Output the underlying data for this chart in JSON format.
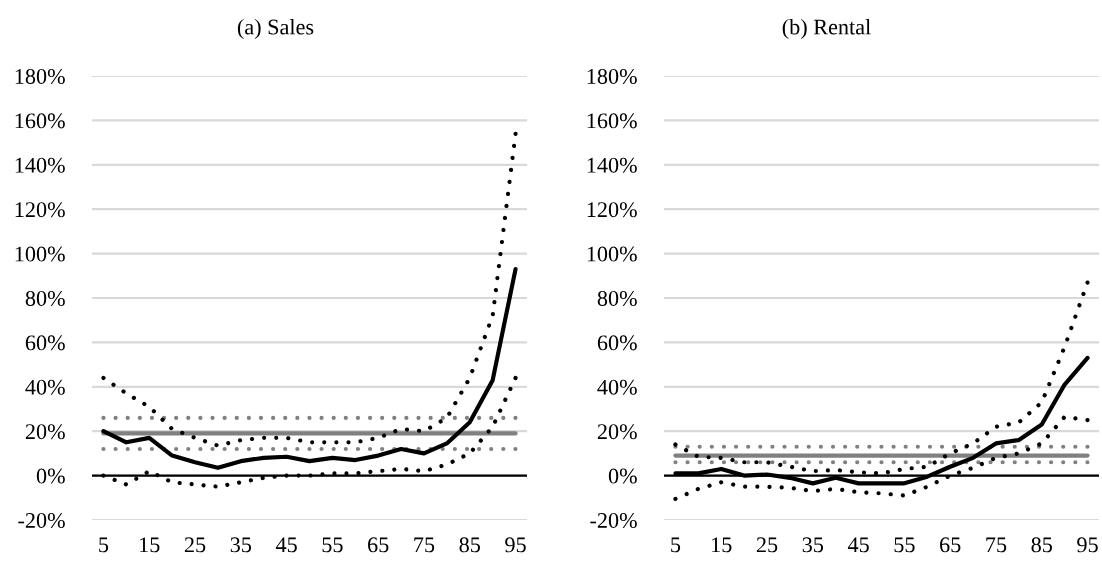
{
  "chart_data": [
    {
      "type": "line",
      "title": "(a) Sales",
      "categories": [
        "5",
        null,
        "15",
        null,
        "25",
        null,
        "35",
        null,
        "45",
        null,
        "55",
        null,
        "65",
        null,
        "75",
        null,
        "85",
        null,
        "95"
      ],
      "series": [
        {
          "color": "#808080",
          "line_style": "dotted",
          "values": [
            26,
            26,
            26,
            26,
            26,
            26,
            26,
            26,
            26,
            26,
            26,
            26,
            26,
            26,
            26,
            26,
            26,
            26,
            26
          ]
        },
        {
          "color": "#808080",
          "line_style": "dotted",
          "values": [
            12,
            12,
            12,
            12,
            12,
            12,
            12,
            12,
            12,
            12,
            12,
            12,
            12,
            12,
            12,
            12,
            12,
            12,
            12
          ]
        },
        {
          "color": "#808080",
          "line_style": "solid",
          "values": [
            19,
            19,
            19,
            19,
            19,
            19,
            19,
            19,
            19,
            19,
            19,
            19,
            19,
            19,
            19,
            19,
            19,
            19,
            19
          ]
        },
        {
          "color": "#000000",
          "line_style": "dotted",
          "values": [
            44,
            37,
            31,
            21,
            17,
            13.5,
            16,
            17,
            17,
            15,
            15,
            15,
            17,
            21,
            20,
            26,
            44,
            72,
            154
          ]
        },
        {
          "color": "#000000",
          "line_style": "dotted",
          "values": [
            0,
            -4,
            2,
            -3,
            -4,
            -5,
            -3,
            -1,
            0,
            0,
            1,
            1,
            2,
            3,
            2,
            5,
            10,
            22,
            44
          ]
        },
        {
          "color": "#000000",
          "line_style": "solid",
          "values": [
            20,
            15,
            17,
            9,
            6,
            3.5,
            6.5,
            8,
            8.5,
            6.5,
            8,
            7,
            9,
            12,
            10,
            14.5,
            24,
            43,
            93
          ]
        }
      ],
      "ylim": [
        -20,
        180
      ],
      "yticks": [
        {
          "value": -20,
          "label": "-20%"
        },
        {
          "value": 0,
          "label": "0%"
        },
        {
          "value": 20,
          "label": "20%"
        },
        {
          "value": 40,
          "label": "40%"
        },
        {
          "value": 60,
          "label": "60%"
        },
        {
          "value": 80,
          "label": "80%"
        },
        {
          "value": 100,
          "label": "100%"
        },
        {
          "value": 120,
          "label": "120%"
        },
        {
          "value": 140,
          "label": "140%"
        },
        {
          "value": 160,
          "label": "160%"
        },
        {
          "value": 180,
          "label": "180%"
        }
      ],
      "ref_lines": [
        {
          "axis": "y",
          "value": 0,
          "color": "#000000"
        }
      ],
      "grid": "y"
    },
    {
      "type": "line",
      "title": "(b) Rental",
      "categories": [
        "5",
        null,
        "15",
        null,
        "25",
        null,
        "35",
        null,
        "45",
        null,
        "55",
        null,
        "65",
        null,
        "75",
        null,
        "85",
        null,
        "95"
      ],
      "series": [
        {
          "color": "#808080",
          "line_style": "dotted",
          "values": [
            13,
            13,
            13,
            13,
            13,
            13,
            13,
            13,
            13,
            13,
            13,
            13,
            13,
            13,
            13,
            13,
            13,
            13,
            13
          ]
        },
        {
          "color": "#808080",
          "line_style": "dotted",
          "values": [
            6,
            6,
            6,
            6,
            6,
            6,
            6,
            6,
            6,
            6,
            6,
            6,
            6,
            6,
            6,
            6,
            6,
            6,
            6
          ]
        },
        {
          "color": "#808080",
          "line_style": "solid",
          "values": [
            9,
            9,
            9,
            9,
            9,
            9,
            9,
            9,
            9,
            9,
            9,
            9,
            9,
            9,
            9,
            9,
            9,
            9,
            9
          ]
        },
        {
          "color": "#000000",
          "line_style": "dotted",
          "values": [
            14,
            8.5,
            8,
            6,
            6,
            4,
            2,
            2.5,
            1.5,
            1,
            3,
            4,
            10,
            14.5,
            22,
            24,
            33,
            58,
            87
          ]
        },
        {
          "color": "#000000",
          "line_style": "dotted",
          "values": [
            -10.5,
            -6,
            -3,
            -5,
            -5,
            -5.5,
            -7,
            -6,
            -7.5,
            -8,
            -9,
            -5,
            0,
            3.5,
            8,
            10,
            14.5,
            26.5,
            25
          ]
        },
        {
          "color": "#000000",
          "line_style": "solid",
          "values": [
            1,
            1,
            3,
            0,
            0.5,
            -1,
            -3.5,
            -1,
            -3.5,
            -3.5,
            -3.5,
            -0.5,
            4,
            8,
            14.5,
            16,
            23,
            41,
            53
          ]
        }
      ],
      "ylim": [
        -20,
        180
      ],
      "yticks": [
        {
          "value": -20,
          "label": "-20%"
        },
        {
          "value": 0,
          "label": "0%"
        },
        {
          "value": 20,
          "label": "20%"
        },
        {
          "value": 40,
          "label": "40%"
        },
        {
          "value": 60,
          "label": "60%"
        },
        {
          "value": 80,
          "label": "80%"
        },
        {
          "value": 100,
          "label": "100%"
        },
        {
          "value": 120,
          "label": "120%"
        },
        {
          "value": 140,
          "label": "140%"
        },
        {
          "value": 160,
          "label": "160%"
        },
        {
          "value": 180,
          "label": "180%"
        }
      ],
      "ref_lines": [
        {
          "axis": "y",
          "value": 0,
          "color": "#000000"
        }
      ],
      "grid": "y"
    }
  ]
}
